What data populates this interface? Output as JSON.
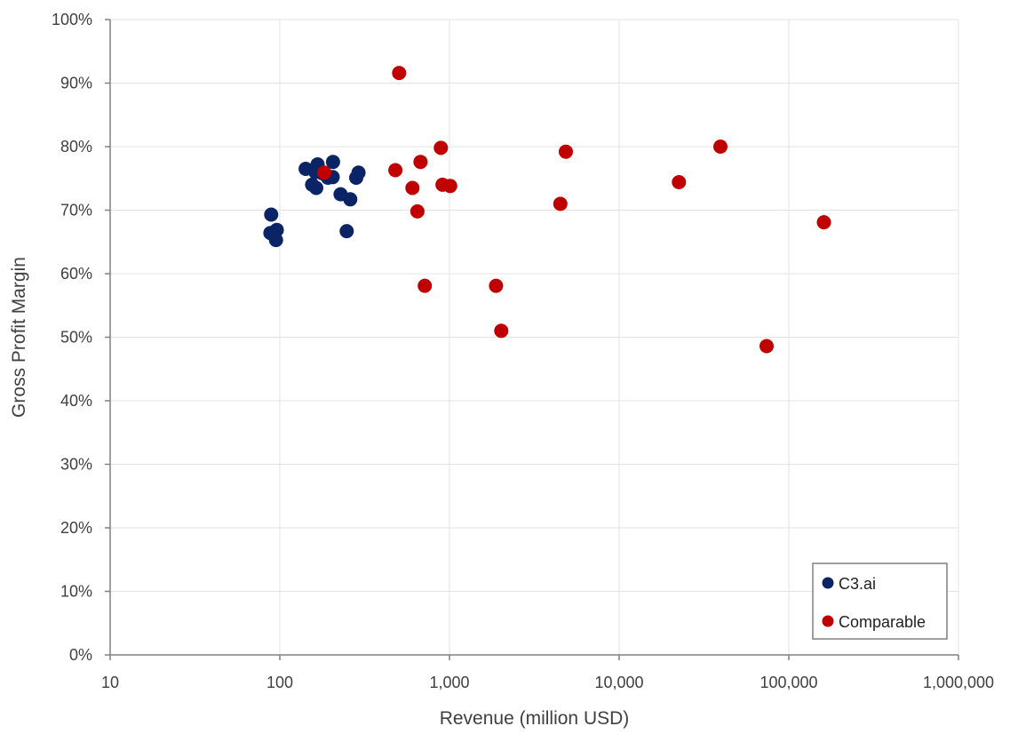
{
  "chart_data": {
    "type": "scatter",
    "title": "",
    "xlabel": "Revenue (million USD)",
    "ylabel": "Gross Profit Margin",
    "x_scale": "log",
    "xlim": [
      10,
      1000000
    ],
    "ylim": [
      0,
      1
    ],
    "x_ticks": [
      10,
      100,
      1000,
      10000,
      100000,
      1000000
    ],
    "x_tick_labels": [
      "10",
      "100",
      "1,000",
      "10,000",
      "100,000",
      "1,000,000"
    ],
    "y_ticks": [
      0,
      0.1,
      0.2,
      0.3,
      0.4,
      0.5,
      0.6,
      0.7,
      0.8,
      0.9,
      1.0
    ],
    "y_tick_labels": [
      "0%",
      "10%",
      "20%",
      "30%",
      "40%",
      "50%",
      "60%",
      "70%",
      "80%",
      "90%",
      "100%"
    ],
    "grid": true,
    "legend_position": "bottom-right",
    "series": [
      {
        "name": "C3.ai",
        "color": "#0b2465",
        "points": [
          {
            "x": 89,
            "y": 0.693
          },
          {
            "x": 88,
            "y": 0.664
          },
          {
            "x": 96,
            "y": 0.669
          },
          {
            "x": 95,
            "y": 0.653
          },
          {
            "x": 142,
            "y": 0.765
          },
          {
            "x": 155,
            "y": 0.74
          },
          {
            "x": 164,
            "y": 0.735
          },
          {
            "x": 167,
            "y": 0.772
          },
          {
            "x": 162,
            "y": 0.76
          },
          {
            "x": 178,
            "y": 0.758
          },
          {
            "x": 192,
            "y": 0.751
          },
          {
            "x": 205,
            "y": 0.752
          },
          {
            "x": 206,
            "y": 0.776
          },
          {
            "x": 228,
            "y": 0.725
          },
          {
            "x": 248,
            "y": 0.667
          },
          {
            "x": 260,
            "y": 0.717
          },
          {
            "x": 282,
            "y": 0.751
          },
          {
            "x": 291,
            "y": 0.759
          }
        ]
      },
      {
        "name": "Comparable",
        "color": "#c00000",
        "points": [
          {
            "x": 183,
            "y": 0.759
          },
          {
            "x": 480,
            "y": 0.763
          },
          {
            "x": 505,
            "y": 0.916
          },
          {
            "x": 605,
            "y": 0.735
          },
          {
            "x": 647,
            "y": 0.698
          },
          {
            "x": 675,
            "y": 0.776
          },
          {
            "x": 715,
            "y": 0.581
          },
          {
            "x": 890,
            "y": 0.798
          },
          {
            "x": 910,
            "y": 0.74
          },
          {
            "x": 1010,
            "y": 0.738
          },
          {
            "x": 1880,
            "y": 0.581
          },
          {
            "x": 2020,
            "y": 0.51
          },
          {
            "x": 4500,
            "y": 0.71
          },
          {
            "x": 4850,
            "y": 0.792
          },
          {
            "x": 22500,
            "y": 0.744
          },
          {
            "x": 39500,
            "y": 0.8
          },
          {
            "x": 74000,
            "y": 0.486
          },
          {
            "x": 161000,
            "y": 0.681
          }
        ]
      }
    ]
  }
}
